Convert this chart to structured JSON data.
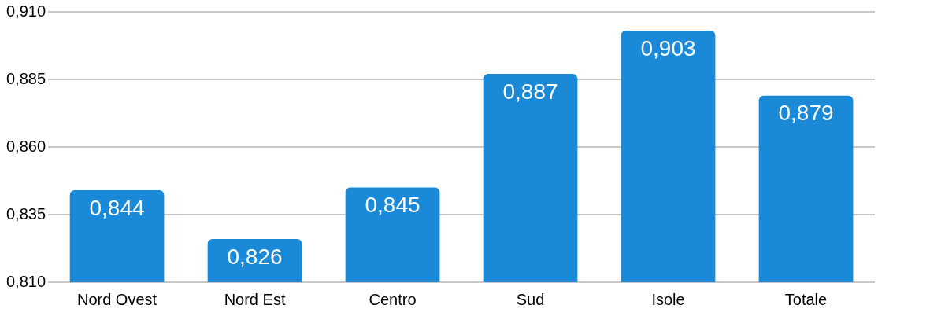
{
  "chart_data": {
    "type": "bar",
    "categories": [
      "Nord Ovest",
      "Nord Est",
      "Centro",
      "Sud",
      "Isole",
      "Totale"
    ],
    "values": [
      0.844,
      0.826,
      0.845,
      0.887,
      0.903,
      0.879
    ],
    "value_labels": [
      "0,844",
      "0,826",
      "0,845",
      "0,887",
      "0,903",
      "0,879"
    ],
    "color": "#1a8ad8",
    "ylim": [
      0.81,
      0.91
    ],
    "yticks": [
      {
        "value": 0.81,
        "label": "0,810"
      },
      {
        "value": 0.835,
        "label": "0,835"
      },
      {
        "value": 0.86,
        "label": "0,860"
      },
      {
        "value": 0.885,
        "label": "0,885"
      },
      {
        "value": 0.91,
        "label": "0,910"
      }
    ],
    "grid": "y",
    "legend": false
  }
}
